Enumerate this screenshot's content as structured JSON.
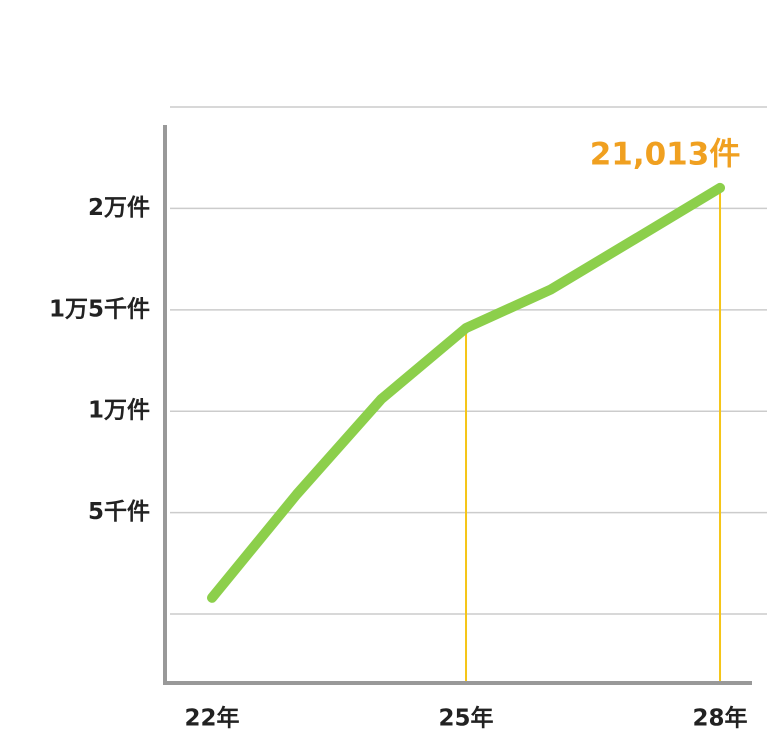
{
  "chart_data": {
    "type": "line",
    "categories": [
      "22年",
      null,
      null,
      "25年",
      null,
      null,
      "28年"
    ],
    "series": [
      {
        "color": "#8ccf4b",
        "values": [
          800,
          5900,
          10600,
          14100,
          16000,
          18500,
          21013
        ],
        "value_labels": [
          null,
          null,
          null,
          null,
          null,
          null,
          "21,013件"
        ]
      }
    ],
    "ylim": [
      -3400,
      25000
    ],
    "yticks": [
      {
        "value": 0,
        "label": null
      },
      {
        "value": 5000,
        "label": "5千件"
      },
      {
        "value": 10000,
        "label": "1万件"
      },
      {
        "value": 15000,
        "label": "1万5千件"
      },
      {
        "value": 20000,
        "label": "2万件"
      },
      {
        "value": 25000,
        "label": null
      }
    ],
    "grid": true,
    "drop_lines": [
      "25年",
      "28年"
    ],
    "drop_line_color": "#f5c518",
    "annotation_color": "#f0a020"
  }
}
